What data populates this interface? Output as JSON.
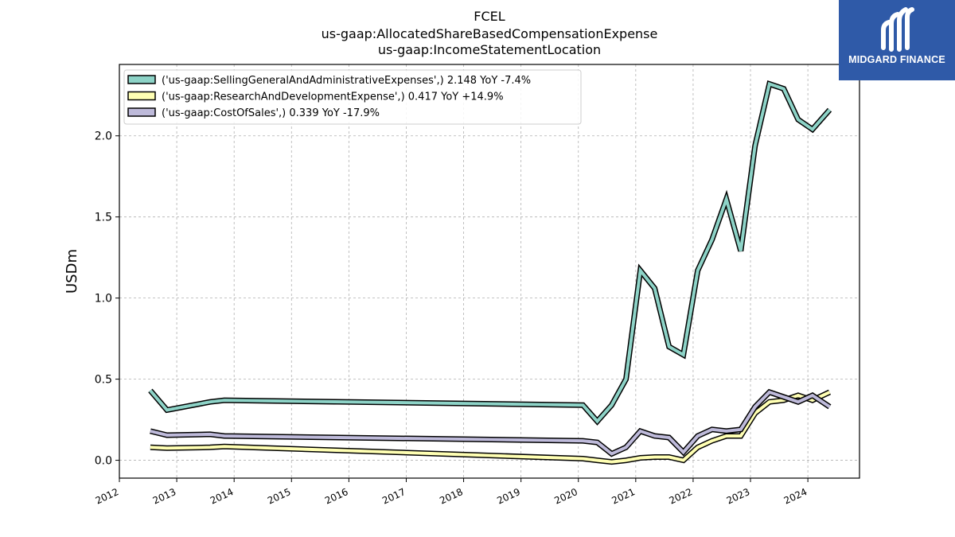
{
  "logo": {
    "name": "MIDGARD FINANCE",
    "bg_color": "#2f5aa8"
  },
  "chart_data": {
    "type": "line",
    "title_lines": [
      "FCEL",
      "us-gaap:AllocatedShareBasedCompensationExpense",
      "us-gaap:IncomeStatementLocation"
    ],
    "xlabel": "",
    "ylabel": "USDm",
    "xlim": [
      2012.0,
      2024.9
    ],
    "ylim": [
      -0.11,
      2.44
    ],
    "x_ticks": [
      "2012",
      "2013",
      "2014",
      "2015",
      "2016",
      "2017",
      "2018",
      "2019",
      "2020",
      "2021",
      "2022",
      "2023",
      "2024"
    ],
    "y_ticks": [
      "0.0",
      "0.5",
      "1.0",
      "1.5",
      "2.0"
    ],
    "grid": true,
    "legend_position": "top-left",
    "series": [
      {
        "name": "('us-gaap:SellingGeneralAndAdministrativeExpenses',) 2.148 YoY -7.4%",
        "color": "#8dd3c7",
        "x": [
          2012.54,
          2012.83,
          2013.58,
          2013.83,
          2020.08,
          2020.33,
          2020.58,
          2020.83,
          2021.08,
          2021.33,
          2021.58,
          2021.83,
          2022.08,
          2022.33,
          2022.58,
          2022.83,
          2023.08,
          2023.33,
          2023.58,
          2023.83,
          2024.08,
          2024.38
        ],
        "y": [
          0.43,
          0.31,
          0.36,
          0.37,
          0.34,
          0.24,
          0.34,
          0.5,
          1.17,
          1.06,
          0.7,
          0.65,
          1.17,
          1.36,
          1.61,
          1.29,
          1.94,
          2.32,
          2.29,
          2.1,
          2.04,
          2.16
        ]
      },
      {
        "name": "('us-gaap:ResearchAndDevelopmentExpense',) 0.417 YoY +14.9%",
        "color": "#ffffb3",
        "x": [
          2012.54,
          2012.83,
          2013.58,
          2013.83,
          2020.08,
          2020.33,
          2020.58,
          2020.83,
          2021.08,
          2021.33,
          2021.58,
          2021.83,
          2022.08,
          2022.33,
          2022.58,
          2022.83,
          2023.08,
          2023.33,
          2023.58,
          2023.83,
          2024.08,
          2024.38
        ],
        "y": [
          0.08,
          0.075,
          0.08,
          0.085,
          0.01,
          0.0,
          -0.01,
          0.0,
          0.015,
          0.02,
          0.02,
          0.0,
          0.08,
          0.12,
          0.15,
          0.15,
          0.29,
          0.36,
          0.37,
          0.4,
          0.37,
          0.42
        ]
      },
      {
        "name": "('us-gaap:CostOfSales',) 0.339 YoY -17.9%",
        "color": "#bebada",
        "x": [
          2012.54,
          2012.83,
          2013.58,
          2013.83,
          2020.08,
          2020.33,
          2020.58,
          2020.83,
          2021.08,
          2021.33,
          2021.58,
          2021.83,
          2022.08,
          2022.33,
          2022.58,
          2022.83,
          2023.08,
          2023.33,
          2023.58,
          2023.83,
          2024.08,
          2024.38
        ],
        "y": [
          0.18,
          0.155,
          0.16,
          0.15,
          0.12,
          0.11,
          0.04,
          0.08,
          0.18,
          0.15,
          0.14,
          0.05,
          0.15,
          0.19,
          0.18,
          0.19,
          0.33,
          0.42,
          0.39,
          0.36,
          0.4,
          0.33
        ]
      }
    ]
  }
}
